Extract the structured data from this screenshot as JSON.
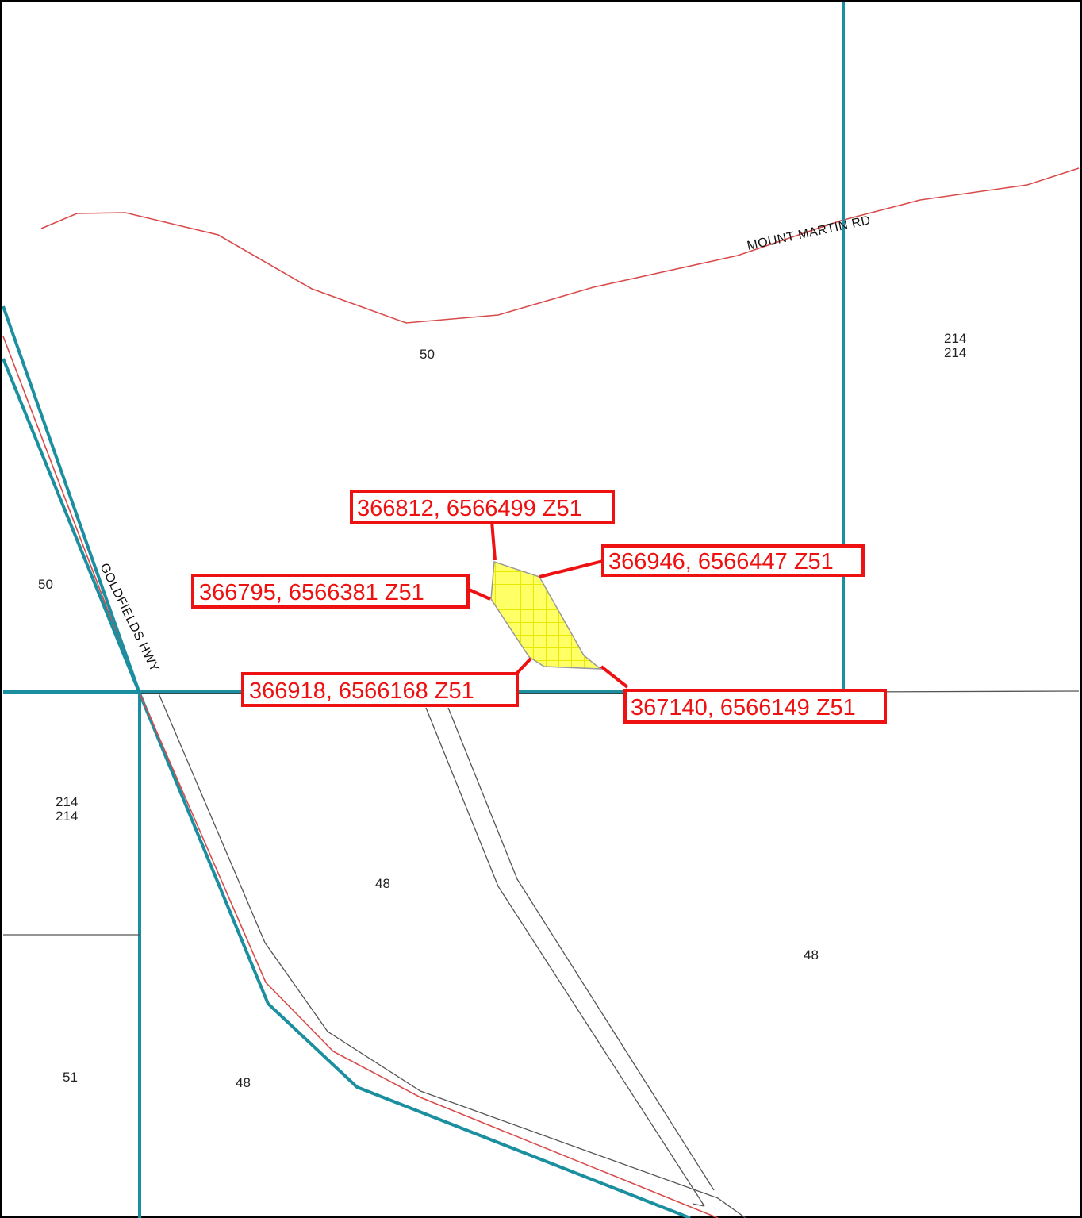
{
  "map": {
    "roads": [
      {
        "id": "mount-martin",
        "name": "MOUNT MARTIN RD"
      },
      {
        "id": "goldfields",
        "name": "GOLDFIELDS HWY"
      }
    ],
    "lots": [
      {
        "id": "lot-50-north",
        "label": "50"
      },
      {
        "id": "lot-50-west",
        "label": "50"
      },
      {
        "id": "lot-214-east-a",
        "label": "214"
      },
      {
        "id": "lot-214-east-b",
        "label": "214"
      },
      {
        "id": "lot-214-west-a",
        "label": "214"
      },
      {
        "id": "lot-214-west-b",
        "label": "214"
      },
      {
        "id": "lot-48-center",
        "label": "48"
      },
      {
        "id": "lot-48-east",
        "label": "48"
      },
      {
        "id": "lot-48-south",
        "label": "48"
      },
      {
        "id": "lot-51",
        "label": "51"
      }
    ],
    "area_of_interest": {
      "fill_color": "#ffff66",
      "hatch_color": "#eeee00",
      "outline_color": "#999999",
      "vertices": [
        {
          "easting": 366812,
          "northing": 6566499,
          "zone": "Z51",
          "label": "366812, 6566499 Z51"
        },
        {
          "easting": 366946,
          "northing": 6566447,
          "zone": "Z51",
          "label": "366946, 6566447 Z51"
        },
        {
          "easting": 366795,
          "northing": 6566381,
          "zone": "Z51",
          "label": "366795, 6566381 Z51"
        },
        {
          "easting": 366918,
          "northing": 6566168,
          "zone": "Z51",
          "label": "366918, 6566168 Z51"
        },
        {
          "easting": 367140,
          "northing": 6566149,
          "zone": "Z51",
          "label": "367140, 6566149 Z51"
        }
      ]
    },
    "colors": {
      "cadastre_teal": "#1b8fa0",
      "road_red": "#d94b4b",
      "callout_red": "#ee1111"
    }
  }
}
